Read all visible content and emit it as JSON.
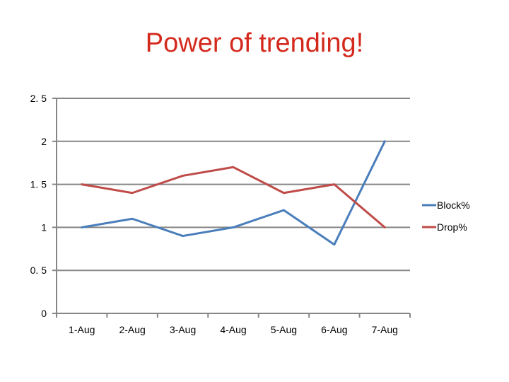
{
  "slide": {
    "title": "Power of trending!"
  },
  "colors": {
    "title": "#d42a1e",
    "block": "#4a7ebb",
    "drop": "#be4b48",
    "grid": "#868686"
  },
  "chart_data": {
    "type": "line",
    "title": "",
    "xlabel": "",
    "ylabel": "",
    "categories": [
      "1-Aug",
      "2-Aug",
      "3-Aug",
      "4-Aug",
      "5-Aug",
      "6-Aug",
      "7-Aug"
    ],
    "series": [
      {
        "name": "Block%",
        "values": [
          1.0,
          1.1,
          0.9,
          1.0,
          1.2,
          0.8,
          2.0
        ],
        "color": "#4a7ebb"
      },
      {
        "name": "Drop%",
        "values": [
          1.5,
          1.4,
          1.6,
          1.7,
          1.4,
          1.5,
          1.0
        ],
        "color": "#be4b48"
      }
    ],
    "ylim": [
      0,
      2.5
    ],
    "yticks": [
      0,
      0.5,
      1,
      1.5,
      2,
      2.5
    ],
    "ytick_labels": [
      "0",
      "0. 5",
      "1",
      "1. 5",
      "2",
      "2. 5"
    ],
    "grid": true,
    "legend": "right"
  }
}
